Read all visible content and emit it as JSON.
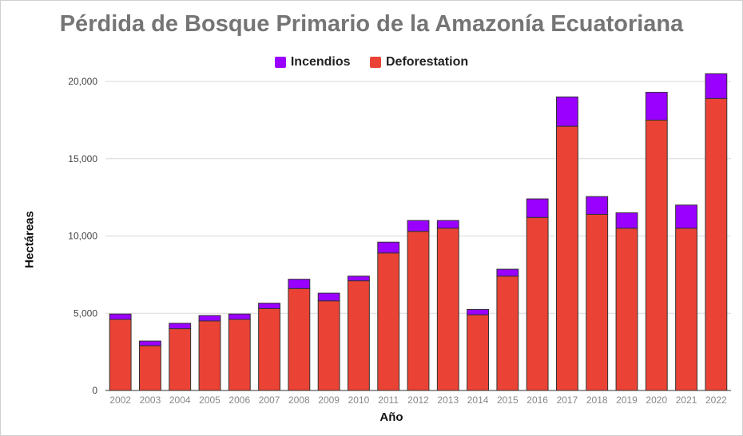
{
  "chart_data": {
    "type": "bar",
    "stacked": true,
    "title": "Pérdida de Bosque Primario de la Amazonía Ecuatoriana",
    "xlabel": "Año",
    "ylabel": "Hectáreas",
    "ylim": [
      0,
      20000
    ],
    "yticks": [
      0,
      5000,
      10000,
      15000,
      20000
    ],
    "ytick_labels": [
      "0",
      "5,000",
      "10,000",
      "15,000",
      "20,000"
    ],
    "grid": true,
    "legend_position": "top",
    "categories": [
      "2002",
      "2003",
      "2004",
      "2005",
      "2006",
      "2007",
      "2008",
      "2009",
      "2010",
      "2011",
      "2012",
      "2013",
      "2014",
      "2015",
      "2016",
      "2017",
      "2018",
      "2019",
      "2020",
      "2021",
      "2022"
    ],
    "series": [
      {
        "name": "Deforestation",
        "color": "#ea4335",
        "values": [
          4600,
          2900,
          4000,
          4500,
          4600,
          5300,
          6600,
          5800,
          7100,
          8900,
          10300,
          10500,
          4900,
          7400,
          11200,
          17100,
          11400,
          10500,
          17500,
          10500,
          18900
        ]
      },
      {
        "name": "Incendios",
        "color": "#9900ff",
        "values": [
          350,
          300,
          350,
          350,
          350,
          350,
          600,
          500,
          300,
          700,
          700,
          500,
          350,
          450,
          1200,
          1900,
          1150,
          1000,
          1800,
          1500,
          1600
        ]
      }
    ],
    "legend_order": [
      "Incendios",
      "Deforestation"
    ]
  }
}
